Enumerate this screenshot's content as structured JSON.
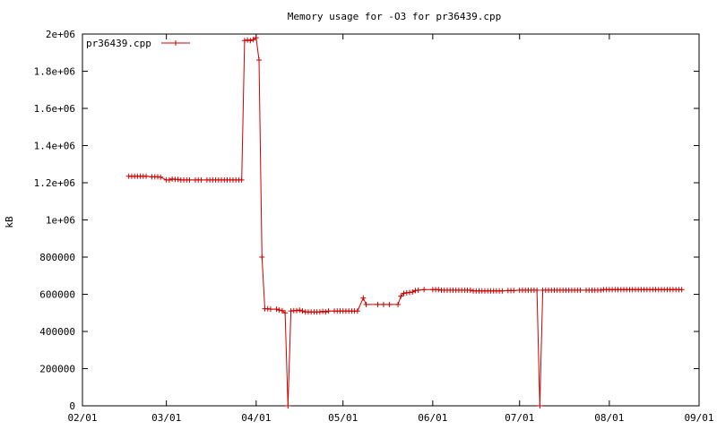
{
  "chart_data": {
    "type": "line",
    "title": "Memory usage for -O3 for pr36439.cpp",
    "xlabel": "",
    "ylabel": "kB",
    "ylim": [
      0,
      2000000
    ],
    "xlim": [
      "2008-02-01",
      "2008-09-01"
    ],
    "y_ticks": [
      {
        "v": 0,
        "label": "0"
      },
      {
        "v": 200000,
        "label": "200000"
      },
      {
        "v": 400000,
        "label": "400000"
      },
      {
        "v": 600000,
        "label": "600000"
      },
      {
        "v": 800000,
        "label": "800000"
      },
      {
        "v": 1000000,
        "label": "1e+06"
      },
      {
        "v": 1200000,
        "label": "1.2e+06"
      },
      {
        "v": 1400000,
        "label": "1.4e+06"
      },
      {
        "v": 1600000,
        "label": "1.6e+06"
      },
      {
        "v": 1800000,
        "label": "1.8e+06"
      },
      {
        "v": 2000000,
        "label": "2e+06"
      }
    ],
    "x_ticks": [
      {
        "v": "2008-02-01",
        "label": "02/01"
      },
      {
        "v": "2008-03-01",
        "label": "03/01"
      },
      {
        "v": "2008-04-01",
        "label": "04/01"
      },
      {
        "v": "2008-05-01",
        "label": "05/01"
      },
      {
        "v": "2008-06-01",
        "label": "06/01"
      },
      {
        "v": "2008-07-01",
        "label": "07/01"
      },
      {
        "v": "2008-08-01",
        "label": "08/01"
      },
      {
        "v": "2008-09-01",
        "label": "09/01"
      }
    ],
    "grid": false,
    "legend": "top-left",
    "colors": {
      "series": "#cc0000"
    },
    "series": [
      {
        "name": "pr36439.cpp",
        "points": [
          [
            "2008-02-17",
            1235000
          ],
          [
            "2008-02-18",
            1235000
          ],
          [
            "2008-02-19",
            1235000
          ],
          [
            "2008-02-20",
            1235000
          ],
          [
            "2008-02-21",
            1235000
          ],
          [
            "2008-02-22",
            1235000
          ],
          [
            "2008-02-23",
            1235000
          ],
          [
            "2008-02-25",
            1232000
          ],
          [
            "2008-02-26",
            1232000
          ],
          [
            "2008-02-27",
            1232000
          ],
          [
            "2008-02-28",
            1230000
          ],
          [
            "2008-03-01",
            1215000
          ],
          [
            "2008-03-02",
            1215000
          ],
          [
            "2008-03-03",
            1220000
          ],
          [
            "2008-03-04",
            1218000
          ],
          [
            "2008-03-05",
            1218000
          ],
          [
            "2008-03-06",
            1215000
          ],
          [
            "2008-03-07",
            1215000
          ],
          [
            "2008-03-08",
            1215000
          ],
          [
            "2008-03-09",
            1215000
          ],
          [
            "2008-03-11",
            1215000
          ],
          [
            "2008-03-12",
            1215000
          ],
          [
            "2008-03-13",
            1215000
          ],
          [
            "2008-03-15",
            1215000
          ],
          [
            "2008-03-16",
            1215000
          ],
          [
            "2008-03-17",
            1215000
          ],
          [
            "2008-03-18",
            1215000
          ],
          [
            "2008-03-19",
            1215000
          ],
          [
            "2008-03-20",
            1215000
          ],
          [
            "2008-03-21",
            1215000
          ],
          [
            "2008-03-22",
            1215000
          ],
          [
            "2008-03-23",
            1215000
          ],
          [
            "2008-03-24",
            1215000
          ],
          [
            "2008-03-25",
            1215000
          ],
          [
            "2008-03-26",
            1215000
          ],
          [
            "2008-03-27",
            1215000
          ],
          [
            "2008-03-28",
            1965000
          ],
          [
            "2008-03-29",
            1968000
          ],
          [
            "2008-03-30",
            1965000
          ],
          [
            "2008-03-31",
            1970000
          ],
          [
            "2008-04-01",
            1980000
          ],
          [
            "2008-04-02",
            1860000
          ],
          [
            "2008-04-03",
            800000
          ],
          [
            "2008-04-04",
            522000
          ],
          [
            "2008-04-05",
            522000
          ],
          [
            "2008-04-06",
            520000
          ],
          [
            "2008-04-08",
            520000
          ],
          [
            "2008-04-09",
            515000
          ],
          [
            "2008-04-10",
            512000
          ],
          [
            "2008-04-11",
            500000
          ],
          [
            "2008-04-12",
            0
          ],
          [
            "2008-04-13",
            510000
          ],
          [
            "2008-04-14",
            512000
          ],
          [
            "2008-04-15",
            512000
          ],
          [
            "2008-04-16",
            515000
          ],
          [
            "2008-04-17",
            510000
          ],
          [
            "2008-04-18",
            505000
          ],
          [
            "2008-04-19",
            505000
          ],
          [
            "2008-04-20",
            505000
          ],
          [
            "2008-04-21",
            505000
          ],
          [
            "2008-04-22",
            505000
          ],
          [
            "2008-04-23",
            505000
          ],
          [
            "2008-04-24",
            508000
          ],
          [
            "2008-04-25",
            505000
          ],
          [
            "2008-04-26",
            510000
          ],
          [
            "2008-04-28",
            510000
          ],
          [
            "2008-04-29",
            510000
          ],
          [
            "2008-04-30",
            510000
          ],
          [
            "2008-05-01",
            510000
          ],
          [
            "2008-05-02",
            510000
          ],
          [
            "2008-05-03",
            510000
          ],
          [
            "2008-05-04",
            510000
          ],
          [
            "2008-05-05",
            510000
          ],
          [
            "2008-05-06",
            510000
          ],
          [
            "2008-05-08",
            580000
          ],
          [
            "2008-05-09",
            545000
          ],
          [
            "2008-05-13",
            545000
          ],
          [
            "2008-05-15",
            545000
          ],
          [
            "2008-05-17",
            545000
          ],
          [
            "2008-05-20",
            545000
          ],
          [
            "2008-05-21",
            590000
          ],
          [
            "2008-05-22",
            605000
          ],
          [
            "2008-05-23",
            608000
          ],
          [
            "2008-05-24",
            610000
          ],
          [
            "2008-05-25",
            612000
          ],
          [
            "2008-05-26",
            620000
          ],
          [
            "2008-05-27",
            622000
          ],
          [
            "2008-05-29",
            625000
          ],
          [
            "2008-06-01",
            625000
          ],
          [
            "2008-06-02",
            625000
          ],
          [
            "2008-06-03",
            625000
          ],
          [
            "2008-06-04",
            622000
          ],
          [
            "2008-06-05",
            622000
          ],
          [
            "2008-06-06",
            622000
          ],
          [
            "2008-06-07",
            622000
          ],
          [
            "2008-06-08",
            622000
          ],
          [
            "2008-06-09",
            622000
          ],
          [
            "2008-06-10",
            622000
          ],
          [
            "2008-06-11",
            622000
          ],
          [
            "2008-06-12",
            622000
          ],
          [
            "2008-06-13",
            622000
          ],
          [
            "2008-06-14",
            622000
          ],
          [
            "2008-06-15",
            618000
          ],
          [
            "2008-06-16",
            618000
          ],
          [
            "2008-06-17",
            618000
          ],
          [
            "2008-06-18",
            618000
          ],
          [
            "2008-06-19",
            618000
          ],
          [
            "2008-06-20",
            618000
          ],
          [
            "2008-06-21",
            618000
          ],
          [
            "2008-06-22",
            618000
          ],
          [
            "2008-06-23",
            618000
          ],
          [
            "2008-06-24",
            618000
          ],
          [
            "2008-06-25",
            618000
          ],
          [
            "2008-06-27",
            620000
          ],
          [
            "2008-06-28",
            620000
          ],
          [
            "2008-06-29",
            620000
          ],
          [
            "2008-07-01",
            622000
          ],
          [
            "2008-07-02",
            622000
          ],
          [
            "2008-07-03",
            622000
          ],
          [
            "2008-07-04",
            622000
          ],
          [
            "2008-07-05",
            622000
          ],
          [
            "2008-07-06",
            622000
          ],
          [
            "2008-07-07",
            622000
          ],
          [
            "2008-07-08",
            0
          ],
          [
            "2008-07-09",
            622000
          ],
          [
            "2008-07-10",
            622000
          ],
          [
            "2008-07-11",
            622000
          ],
          [
            "2008-07-12",
            622000
          ],
          [
            "2008-07-13",
            622000
          ],
          [
            "2008-07-14",
            622000
          ],
          [
            "2008-07-15",
            622000
          ],
          [
            "2008-07-16",
            622000
          ],
          [
            "2008-07-17",
            622000
          ],
          [
            "2008-07-18",
            622000
          ],
          [
            "2008-07-19",
            622000
          ],
          [
            "2008-07-20",
            622000
          ],
          [
            "2008-07-21",
            622000
          ],
          [
            "2008-07-22",
            622000
          ],
          [
            "2008-07-24",
            622000
          ],
          [
            "2008-07-25",
            622000
          ],
          [
            "2008-07-26",
            622000
          ],
          [
            "2008-07-27",
            622000
          ],
          [
            "2008-07-28",
            622000
          ],
          [
            "2008-07-29",
            622000
          ],
          [
            "2008-07-30",
            625000
          ],
          [
            "2008-07-31",
            625000
          ],
          [
            "2008-08-01",
            625000
          ],
          [
            "2008-08-02",
            625000
          ],
          [
            "2008-08-03",
            625000
          ],
          [
            "2008-08-04",
            625000
          ],
          [
            "2008-08-05",
            625000
          ],
          [
            "2008-08-06",
            625000
          ],
          [
            "2008-08-07",
            625000
          ],
          [
            "2008-08-08",
            625000
          ],
          [
            "2008-08-09",
            625000
          ],
          [
            "2008-08-10",
            625000
          ],
          [
            "2008-08-11",
            625000
          ],
          [
            "2008-08-12",
            625000
          ],
          [
            "2008-08-13",
            625000
          ],
          [
            "2008-08-14",
            625000
          ],
          [
            "2008-08-15",
            625000
          ],
          [
            "2008-08-16",
            625000
          ],
          [
            "2008-08-17",
            625000
          ],
          [
            "2008-08-18",
            625000
          ],
          [
            "2008-08-19",
            625000
          ],
          [
            "2008-08-20",
            625000
          ],
          [
            "2008-08-21",
            625000
          ],
          [
            "2008-08-22",
            625000
          ],
          [
            "2008-08-23",
            625000
          ],
          [
            "2008-08-24",
            625000
          ],
          [
            "2008-08-25",
            625000
          ],
          [
            "2008-08-26",
            625000
          ]
        ]
      }
    ]
  }
}
